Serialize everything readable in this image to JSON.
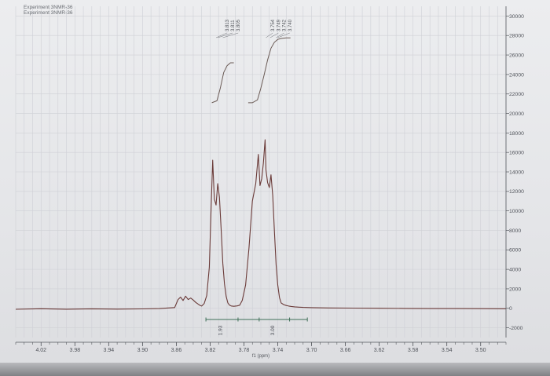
{
  "header": {
    "line1": "Experiment 3NMR-36",
    "line2": "Experiment 3NMR-36"
  },
  "colors": {
    "paper": "#e8e9eb",
    "grid": "#cfd0d6",
    "spectrum": "#6a3a38",
    "integral": "#6a5a55",
    "axis": "#55585e",
    "integral_bar": "#3f6f58"
  },
  "chart_data": {
    "type": "line",
    "title": "",
    "xlabel": "f1 (ppm)",
    "ylabel": "",
    "x_reversed": true,
    "xlim": [
      4.05,
      3.47
    ],
    "ylim": [
      -3000,
      31000
    ],
    "x_ticks": [
      4.02,
      3.98,
      3.94,
      3.9,
      3.86,
      3.82,
      3.78,
      3.74,
      3.7,
      3.66,
      3.62,
      3.58,
      3.54,
      3.5
    ],
    "x_tick_labels": [
      "4.02",
      "3.98",
      "3.94",
      "3.90",
      "3.86",
      "3.82",
      "3.78",
      "3.74",
      "3.70",
      "3.66",
      "3.62",
      "3.58",
      "3.54",
      "3.50"
    ],
    "y_ticks": [
      30000,
      28000,
      26000,
      24000,
      22000,
      20000,
      18000,
      16000,
      14000,
      12000,
      10000,
      8000,
      6000,
      4000,
      2000,
      0,
      -2000
    ],
    "y_tick_labels": [
      "30000",
      "28000",
      "26000",
      "24000",
      "22000",
      "20000",
      "18000",
      "16000",
      "14000",
      "12000",
      "10000",
      "8000",
      "6000",
      "4000",
      "2000",
      "0",
      "-2000"
    ],
    "grid": true,
    "peak_labels": [
      {
        "group": "A",
        "labels": [
          "3.813",
          "3.811",
          "3.805"
        ]
      },
      {
        "group": "B",
        "labels": [
          "3.754",
          "3.749",
          "3.742",
          "3.740"
        ]
      }
    ],
    "integrals": [
      {
        "value": "1.93",
        "start": 3.825,
        "end": 3.787
      },
      {
        "value": "3.00",
        "start": 3.762,
        "end": 3.726
      }
    ],
    "integral_bar_range": [
      3.825,
      3.705
    ],
    "series": [
      {
        "x": [
          4.05,
          4.02,
          3.99,
          3.96,
          3.93,
          3.9,
          3.88,
          3.862,
          3.858,
          3.855,
          3.852,
          3.849,
          3.846,
          3.843,
          3.84,
          3.837,
          3.834,
          3.832,
          3.83,
          3.827,
          3.824,
          3.821,
          3.819,
          3.817,
          3.815,
          3.813,
          3.811,
          3.809,
          3.807,
          3.805,
          3.803,
          3.801,
          3.799,
          3.797,
          3.795,
          3.792,
          3.788,
          3.785,
          3.782,
          3.778,
          3.774,
          3.77,
          3.766,
          3.763,
          3.761,
          3.759,
          3.757,
          3.755,
          3.754,
          3.752,
          3.75,
          3.748,
          3.746,
          3.744,
          3.742,
          3.74,
          3.738,
          3.736,
          3.733,
          3.73,
          3.727,
          3.724,
          3.72,
          3.715,
          3.71,
          3.7,
          3.68,
          3.65,
          3.62,
          3.59,
          3.56,
          3.53,
          3.5,
          3.47
        ],
        "y": [
          -100,
          -40,
          -90,
          -50,
          -80,
          -60,
          -30,
          80,
          900,
          1150,
          800,
          1250,
          900,
          1050,
          850,
          600,
          420,
          300,
          230,
          500,
          1300,
          4200,
          9800,
          15200,
          11200,
          10600,
          12800,
          11400,
          8200,
          4600,
          2500,
          1200,
          550,
          320,
          240,
          210,
          250,
          320,
          800,
          2400,
          6200,
          11000,
          12800,
          15800,
          12600,
          13300,
          14900,
          17300,
          14200,
          12900,
          12400,
          13700,
          11600,
          8000,
          4500,
          2400,
          1100,
          550,
          380,
          290,
          230,
          190,
          150,
          120,
          90,
          70,
          40,
          20,
          5,
          -10,
          -25,
          -30,
          -35,
          -40
        ]
      }
    ],
    "integral_curves": [
      {
        "x": [
          3.818,
          3.812,
          3.808,
          3.804,
          3.8,
          3.796,
          3.792
        ],
        "y": [
          21100,
          21300,
          22600,
          24200,
          24900,
          25200,
          25200
        ]
      },
      {
        "x": [
          3.775,
          3.77,
          3.764,
          3.76,
          3.756,
          3.752,
          3.748,
          3.744,
          3.74,
          3.736,
          3.73,
          3.725
        ],
        "y": [
          21100,
          21100,
          21400,
          22600,
          24000,
          25500,
          26700,
          27300,
          27600,
          27700,
          27750,
          27750
        ]
      }
    ]
  }
}
